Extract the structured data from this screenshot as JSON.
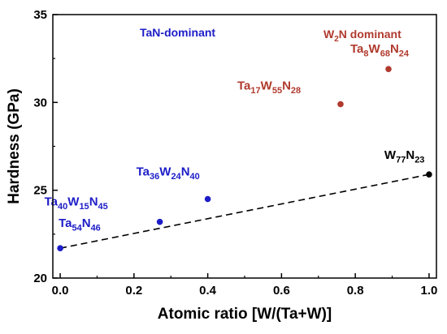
{
  "chart_data": {
    "type": "scatter",
    "xlabel": "Atomic ratio [W/(Ta+W)]",
    "ylabel": "Hardness (GPa)",
    "xlim": [
      -0.02,
      1.02
    ],
    "ylim": [
      20,
      35
    ],
    "xticks": [
      0.0,
      0.2,
      0.4,
      0.6,
      0.8,
      1.0
    ],
    "xtick_labels": [
      "0.0",
      "0.2",
      "0.4",
      "0.6",
      "0.8",
      "1.0"
    ],
    "yticks": [
      20,
      25,
      30,
      35
    ],
    "ytick_labels": [
      "20",
      "25",
      "30",
      "35"
    ],
    "grid": false,
    "series": [
      {
        "color": "#1c1cc8",
        "points": [
          {
            "x": 0.0,
            "y": 21.7,
            "label": [
              {
                "t": "Ta"
              },
              {
                "t": "54",
                "sub": true
              },
              {
                "t": "N"
              },
              {
                "t": "46",
                "sub": true
              }
            ]
          },
          {
            "x": 0.27,
            "y": 23.2,
            "label": [
              {
                "t": "Ta"
              },
              {
                "t": "40",
                "sub": true
              },
              {
                "t": "W"
              },
              {
                "t": "15",
                "sub": true
              },
              {
                "t": "N"
              },
              {
                "t": "45",
                "sub": true
              }
            ]
          },
          {
            "x": 0.4,
            "y": 24.5,
            "label": [
              {
                "t": "Ta"
              },
              {
                "t": "36",
                "sub": true
              },
              {
                "t": "W"
              },
              {
                "t": "24",
                "sub": true
              },
              {
                "t": "N"
              },
              {
                "t": "40",
                "sub": true
              }
            ]
          }
        ]
      },
      {
        "color": "#b03a2e",
        "points": [
          {
            "x": 0.76,
            "y": 29.9,
            "label": [
              {
                "t": "Ta"
              },
              {
                "t": "17",
                "sub": true
              },
              {
                "t": "W"
              },
              {
                "t": "55",
                "sub": true
              },
              {
                "t": "N"
              },
              {
                "t": "28",
                "sub": true
              }
            ]
          },
          {
            "x": 0.89,
            "y": 31.9,
            "label": [
              {
                "t": "Ta"
              },
              {
                "t": "8",
                "sub": true
              },
              {
                "t": "W"
              },
              {
                "t": "68",
                "sub": true
              },
              {
                "t": "N"
              },
              {
                "t": "24",
                "sub": true
              }
            ]
          }
        ]
      },
      {
        "color": "#000000",
        "points": [
          {
            "x": 1.0,
            "y": 25.9,
            "label": [
              {
                "t": "W"
              },
              {
                "t": "77",
                "sub": true
              },
              {
                "t": "N"
              },
              {
                "t": "23",
                "sub": true
              }
            ]
          }
        ]
      }
    ],
    "trend_line": {
      "style": "dashed",
      "color": "#000000",
      "x": [
        0.0,
        1.0
      ],
      "y": [
        21.7,
        25.9
      ]
    },
    "annotations": [
      {
        "id": "tan",
        "color": "#1c1cc8",
        "runs": [
          {
            "t": "TaN-dominant"
          }
        ]
      },
      {
        "id": "w2n",
        "color": "#b03a2e",
        "runs": [
          {
            "t": "W"
          },
          {
            "t": "2",
            "sub": true
          },
          {
            "t": "N dominant"
          }
        ]
      }
    ]
  }
}
